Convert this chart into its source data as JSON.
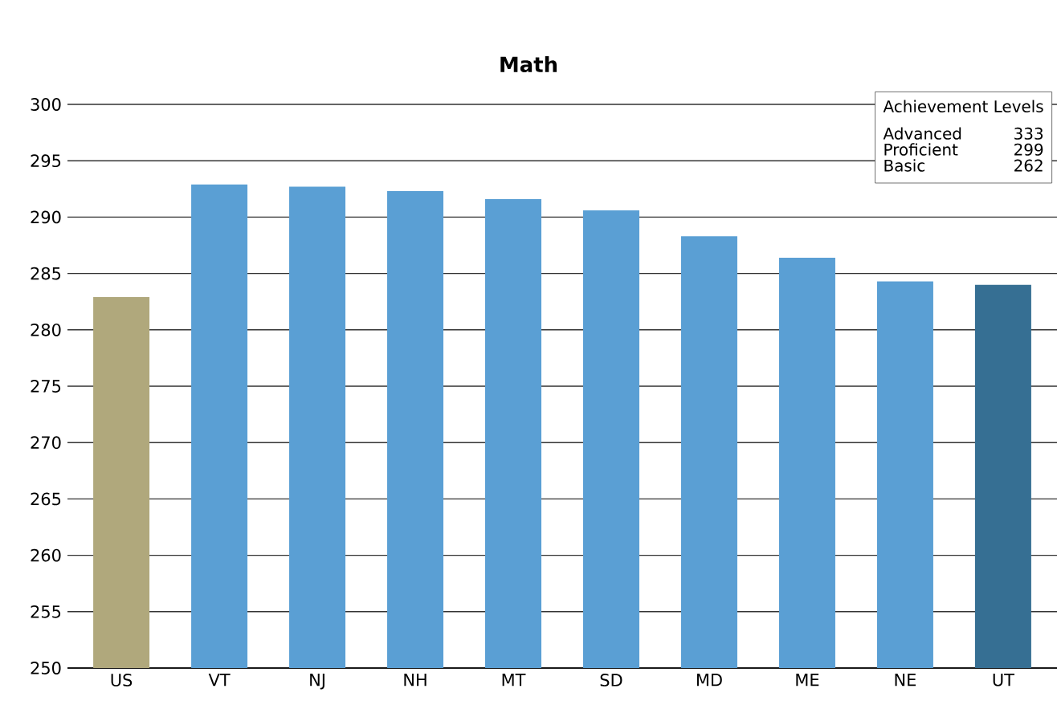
{
  "chart_data": {
    "type": "bar",
    "title": "Math",
    "categories": [
      "US",
      "VT",
      "NJ",
      "NH",
      "MT",
      "SD",
      "MD",
      "ME",
      "NE",
      "UT"
    ],
    "values": [
      282.9,
      292.9,
      292.7,
      292.3,
      291.6,
      290.6,
      288.3,
      286.4,
      284.3,
      284.0
    ],
    "colors": [
      "#b0a87c",
      "#5a9fd4",
      "#5a9fd4",
      "#5a9fd4",
      "#5a9fd4",
      "#5a9fd4",
      "#5a9fd4",
      "#5a9fd4",
      "#5a9fd4",
      "#366f93"
    ],
    "ylim": [
      250,
      300
    ],
    "yticks": [
      250,
      255,
      260,
      265,
      270,
      275,
      280,
      285,
      290,
      295,
      300
    ],
    "grid": "y",
    "annotations": [
      "Achievement Levels",
      "Advanced",
      "333",
      "Proficient",
      "299",
      "Basic",
      "262"
    ]
  }
}
